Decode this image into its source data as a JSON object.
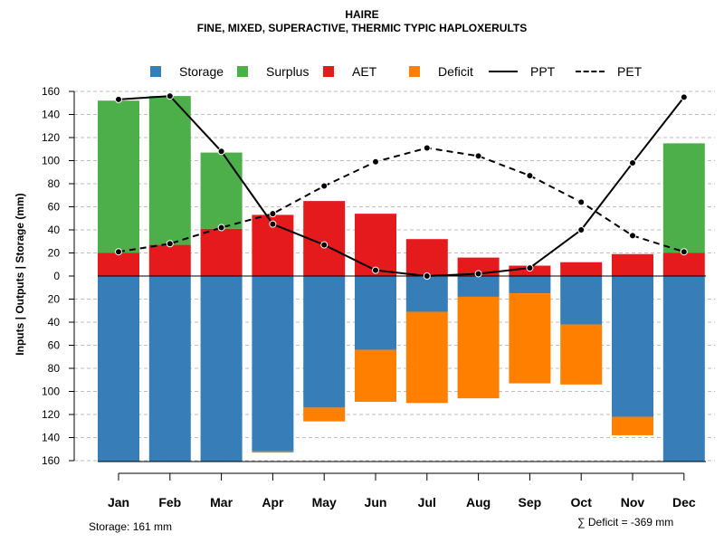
{
  "chart_data": {
    "type": "bar",
    "title": "HAIRE",
    "subtitle": "FINE, MIXED, SUPERACTIVE, THERMIC TYPIC HAPLOXERULTS",
    "ylabel": "Inputs | Outputs | Storage    (mm)",
    "categories": [
      "Jan",
      "Feb",
      "Mar",
      "Apr",
      "May",
      "Jun",
      "Jul",
      "Aug",
      "Sep",
      "Oct",
      "Nov",
      "Dec"
    ],
    "ylim": [
      -160,
      160
    ],
    "y_ticks": [
      160,
      140,
      120,
      100,
      80,
      60,
      40,
      20,
      0,
      20,
      40,
      60,
      80,
      100,
      120,
      140,
      160
    ],
    "legend": {
      "storage": "Storage",
      "surplus": "Surplus",
      "aet": "AET",
      "deficit": "Deficit",
      "ppt": "PPT",
      "pet": "PET"
    },
    "colors": {
      "storage": "#377EB8",
      "surplus": "#4DAF4A",
      "aet": "#E41A1C",
      "deficit": "#FF7F00",
      "line": "#000000",
      "grid": "#BEBEBE"
    },
    "series": {
      "aet": [
        20,
        27,
        41,
        53,
        65,
        54,
        32,
        16,
        9,
        12,
        19,
        20
      ],
      "surplus": [
        132,
        129,
        66,
        0,
        0,
        0,
        0,
        0,
        0,
        0,
        0,
        95
      ],
      "storage": [
        161,
        161,
        161,
        152,
        114,
        64,
        31,
        18,
        15,
        42,
        122,
        161
      ],
      "deficit": [
        0,
        0,
        0,
        1,
        12,
        45,
        79,
        88,
        78,
        52,
        16,
        0
      ],
      "ppt": [
        153,
        156,
        108,
        45,
        27,
        5,
        0,
        2,
        7,
        40,
        98,
        155
      ],
      "pet": [
        21,
        28,
        42,
        54,
        78,
        99,
        111,
        104,
        87,
        64,
        35,
        21
      ]
    },
    "storage_note": "Storage: 161 mm",
    "deficit_note": "∑ Deficit = -369 mm"
  }
}
